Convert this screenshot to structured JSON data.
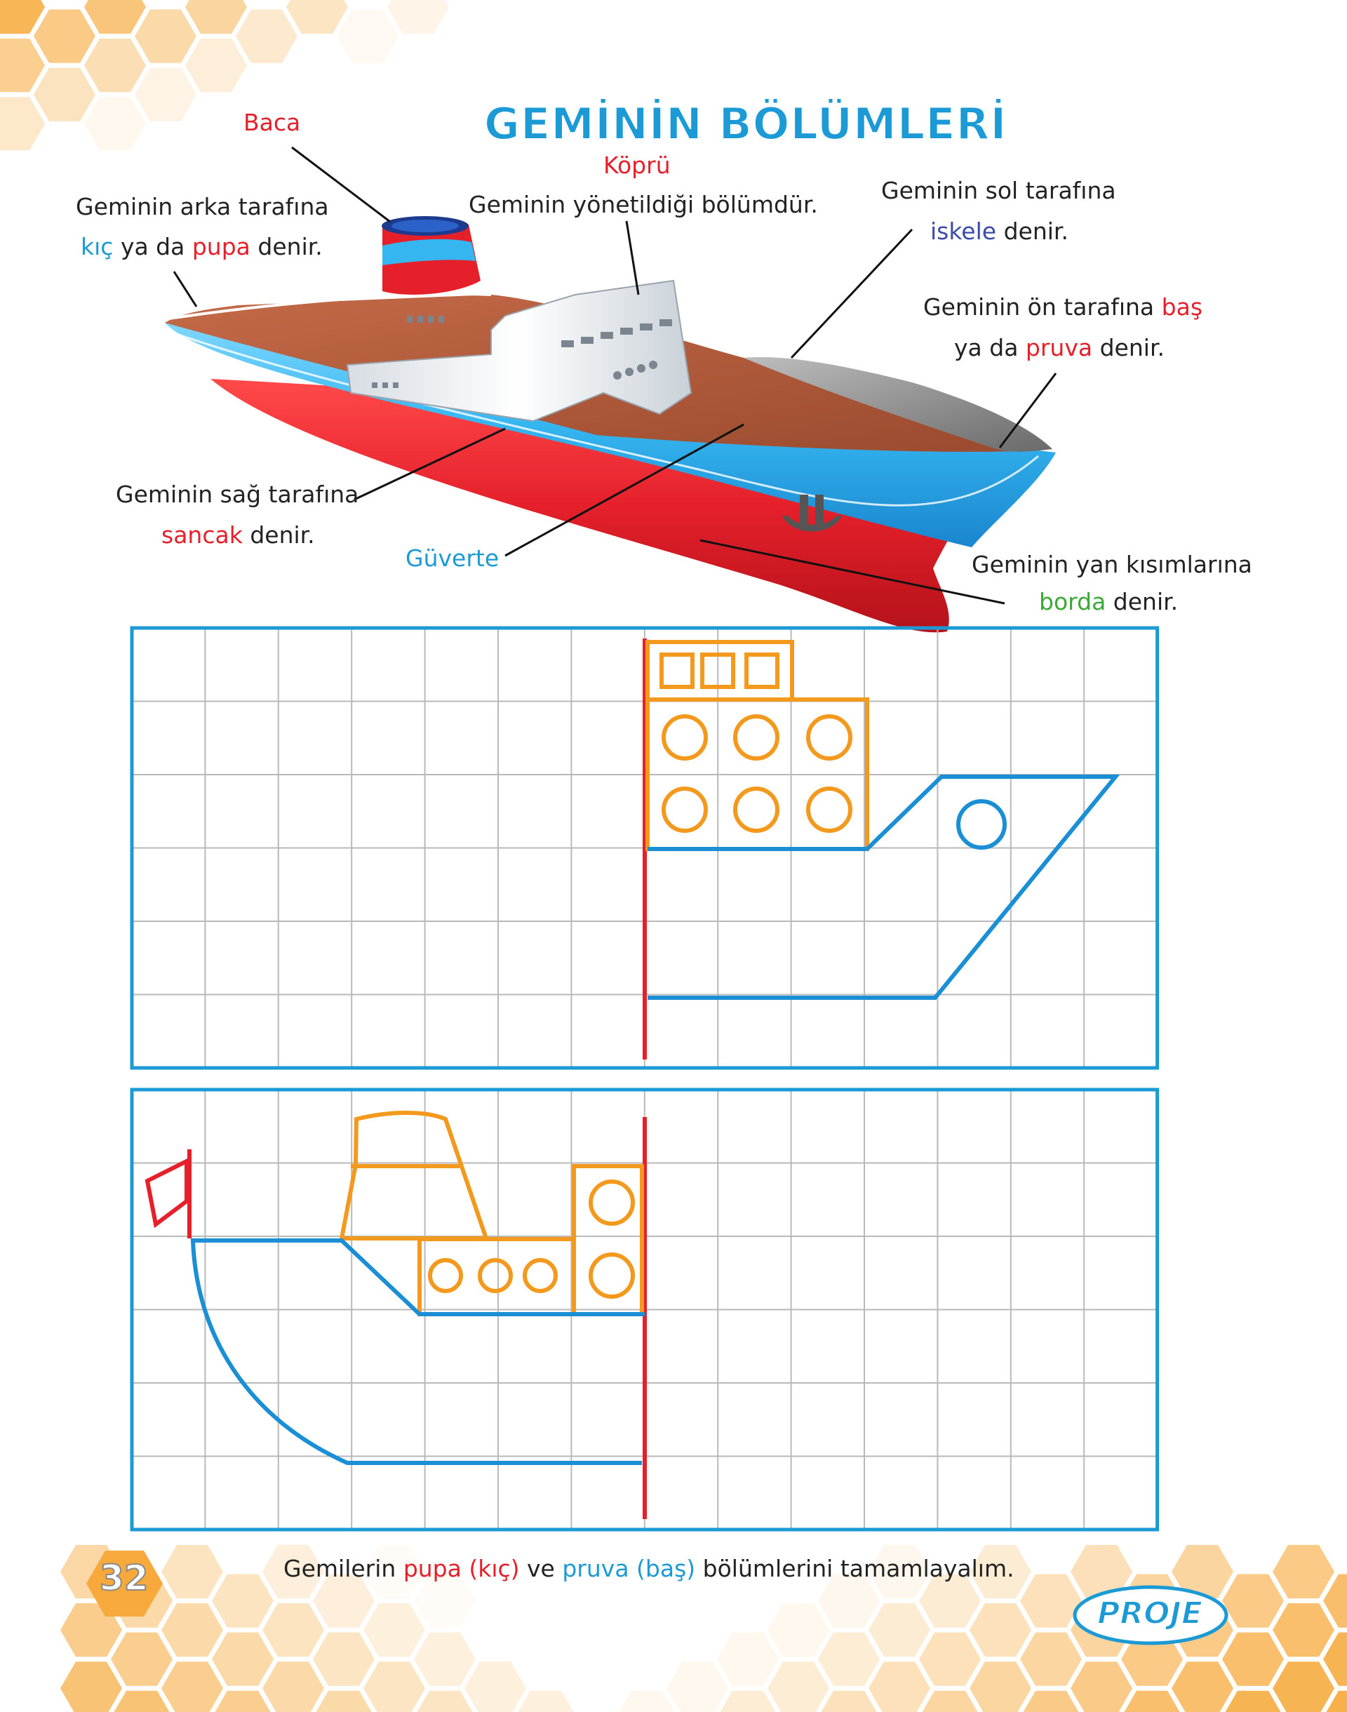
{
  "title": "GEMİNİN BÖLÜMLERİ",
  "labels": {
    "baca": "Baca",
    "kopru_title": "Köprü",
    "kopru_desc": "Geminin yönetildiği bölümdür.",
    "arka_line1": "Geminin arka tarafına",
    "kic": "kıç",
    "ya_da": "ya da",
    "pupa": "pupa",
    "denir": "denir.",
    "sol_line1": "Geminin sol tarafına",
    "iskele": "iskele",
    "on_line1": "Geminin ön tarafına",
    "bas": "baş",
    "pruva": "pruva",
    "sag_line1": "Geminin sağ tarafına",
    "sancak": "sancak",
    "guverte": "Güverte",
    "yan_line1": "Geminin yan kısımlarına",
    "borda": "borda"
  },
  "instruction": {
    "part1": "Gemilerin",
    "pupa_kic": "pupa (kıç)",
    "ve": "ve",
    "pruva_bas": "pruva (baş)",
    "part2": "bölümlerini tamamlayalım."
  },
  "footer": {
    "page_number": "32",
    "badge": "PROJE"
  },
  "colors": {
    "grid_border": "#1b9ad6",
    "grid_line": "#b9b9b9",
    "orange": "#f39a1e",
    "hull_blue": "#1b8fd6",
    "hull_red": "#e5202b",
    "honeycomb": "#f7b04a"
  },
  "icons": {
    "honeycomb": "hexagon-pattern",
    "ship": "cargo-ship-illustration",
    "anchor": "anchor-icon"
  }
}
